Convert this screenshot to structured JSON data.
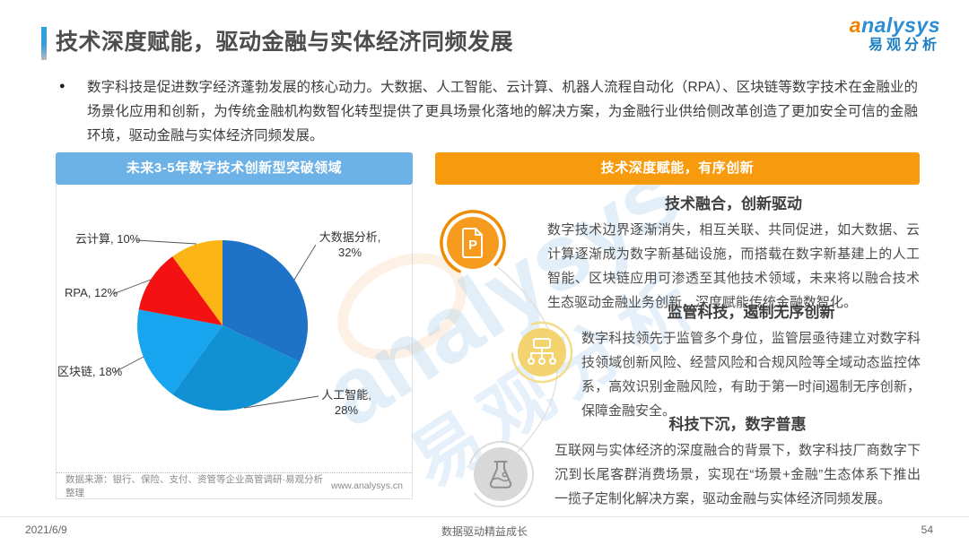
{
  "slide": {
    "title": "技术深度赋能，驱动金融与实体经济同频发展",
    "bullet_marker": "●",
    "bullet": "数字科技是促进数字经济蓬勃发展的核心动力。大数据、人工智能、云计算、机器人流程自动化（RPA）、区块链等数字技术在金融业的场景化应用和创新，为传统金融机构数智化转型提供了更具场景化落地的解决方案，为金融行业供给侧改革创造了更加安全可信的金融环境，驱动金融与实体经济同频发展。"
  },
  "logo": {
    "brand": "analysys",
    "brand_cn": "易观分析"
  },
  "watermark": {
    "text": "analysys",
    "text_cn": "易观分析"
  },
  "left_panel": {
    "header": "未来3-5年数字技术创新型突破领域",
    "source": "数据来源：银行、保险、支付、资管等企业高管调研·易观分析整理",
    "website": "www.analysys.cn"
  },
  "chart_data": {
    "type": "pie",
    "title": "未来3-5年数字技术创新型突破领域",
    "labels": [
      "大数据分析",
      "人工智能",
      "区块链",
      "RPA",
      "云计算"
    ],
    "values": [
      32,
      28,
      18,
      12,
      10
    ],
    "unit": "%",
    "colors": [
      "#1e72c8",
      "#1191d3",
      "#16a5ee",
      "#f31111",
      "#fcb514"
    ],
    "start_angle_deg": 0,
    "direction": "clockwise",
    "legend": "callout-labels"
  },
  "right_panel": {
    "header": "技术深度赋能，有序创新",
    "sections": [
      {
        "icon": "document-p-icon",
        "title": "技术融合，创新驱动",
        "body": "数字技术边界逐渐消失，相互关联、共同促进，如大数据、云计算逐渐成为数字新基础设施，而搭载在数字新基建上的人工智能、区块链应用可渗透至其他技术领域，未来将以融合技术生态驱动金融业务创新，深度赋能传统金融数智化。"
      },
      {
        "icon": "sitemap-icon",
        "title": "监管科技，遏制无序创新",
        "body": "数字科技领先于监管多个身位，监管层亟待建立对数字科技领域创新风险、经营风险和合规风险等全域动态监控体系，高效识别金融风险，有助于第一时间遏制无序创新，保障金融安全。"
      },
      {
        "icon": "flask-icon",
        "title": "科技下沉，数字普惠",
        "body": "互联网与实体经济的深度融合的背景下，数字科技厂商数字下沉到长尾客群消费场景，实现在“场景+金融”生态体系下推出一揽子定制化解决方案，驱动金融与实体经济同频发展。"
      }
    ]
  },
  "footer": {
    "date": "2021/6/9",
    "motto": "数据驱动精益成长",
    "page": "54"
  },
  "colors": {
    "blue_header_bg": "#6cb2e6",
    "orange_header_bg": "#f89a0d",
    "accent_blue": "#2aa2e8",
    "logo_blue": "#1b7ec2",
    "logo_orange": "#f08300",
    "icon1_fill": "#f79b1e",
    "icon2_fill": "#f3d370",
    "icon3_fill": "#d8d8d8"
  }
}
